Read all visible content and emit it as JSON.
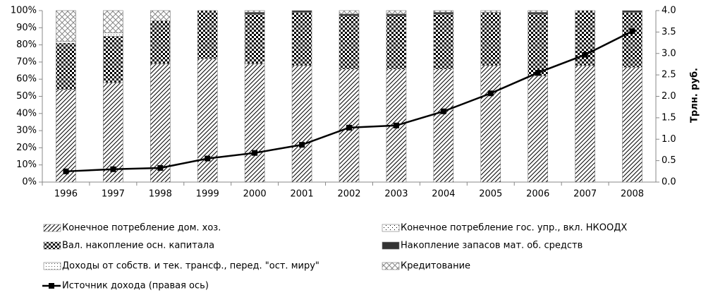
{
  "chart_data": {
    "type": "bar",
    "stacked": true,
    "categories": [
      "1996",
      "1997",
      "1998",
      "1999",
      "2000",
      "2001",
      "2002",
      "2003",
      "2004",
      "2005",
      "2006",
      "2007",
      "2008"
    ],
    "series": [
      {
        "name": "Конечное потребление дом. хоз.",
        "color": "#000000",
        "pattern": "diagonal",
        "values": [
          54,
          58,
          69,
          72,
          69,
          68,
          66,
          66,
          66,
          68,
          62,
          68,
          67
        ]
      },
      {
        "name": "Вал. накопление осн. капитала",
        "color": "#000000",
        "pattern": "checker",
        "values": [
          27,
          27,
          25,
          28,
          29,
          31,
          31,
          31,
          32,
          31,
          36,
          32,
          32
        ]
      },
      {
        "name": "Накопление запасов мат. об. средств",
        "color": "#333333",
        "pattern": "solid",
        "values": [
          0,
          0,
          0,
          0,
          1,
          1,
          1,
          1,
          1,
          0,
          1,
          0,
          1
        ]
      },
      {
        "name": "Конечное потребление гос. упр., вкл. НКООДХ",
        "color": "#000000",
        "pattern": "sparse-dots",
        "values": [
          1,
          0,
          0,
          0,
          0,
          0,
          0,
          0,
          0,
          0,
          0,
          0,
          0
        ]
      },
      {
        "name": "Доходы от собств. и тек. трансф., перед. \"ост. миру\"",
        "color": "#000000",
        "pattern": "dots",
        "values": [
          0,
          2,
          0,
          0,
          0,
          0,
          0,
          0,
          0,
          0,
          0,
          0,
          0
        ]
      },
      {
        "name": "Кредитование",
        "color": "#000000",
        "pattern": "crosshatch",
        "values": [
          18,
          13,
          6,
          0,
          1,
          0,
          2,
          2,
          1,
          1,
          1,
          0,
          0
        ]
      },
      {
        "name": "Источник дохода (правая ось)",
        "color": "#000000",
        "type": "line",
        "axis": "y2",
        "values": [
          0.25,
          0.3,
          0.33,
          0.55,
          0.68,
          0.87,
          1.27,
          1.32,
          1.65,
          2.07,
          2.55,
          2.97,
          3.52
        ]
      }
    ],
    "ylim": [
      0,
      100
    ],
    "yticks": [
      {
        "value": 0,
        "label": "0%"
      },
      {
        "value": 10,
        "label": "10%"
      },
      {
        "value": 20,
        "label": "20%"
      },
      {
        "value": 30,
        "label": "30%"
      },
      {
        "value": 40,
        "label": "40%"
      },
      {
        "value": 50,
        "label": "50%"
      },
      {
        "value": 60,
        "label": "60%"
      },
      {
        "value": 70,
        "label": "70%"
      },
      {
        "value": 80,
        "label": "80%"
      },
      {
        "value": 90,
        "label": "90%"
      },
      {
        "value": 100,
        "label": "100%"
      }
    ],
    "y2lim": [
      0,
      4
    ],
    "y2ticks": [
      {
        "value": 0,
        "label": "0.0"
      },
      {
        "value": 0.5,
        "label": "0.5"
      },
      {
        "value": 1,
        "label": "1.0"
      },
      {
        "value": 1.5,
        "label": "1.5"
      },
      {
        "value": 2,
        "label": "2.0"
      },
      {
        "value": 2.5,
        "label": "2.5"
      },
      {
        "value": 3,
        "label": "3.0"
      },
      {
        "value": 3.5,
        "label": "3.5"
      },
      {
        "value": 4,
        "label": "4.0"
      }
    ],
    "y2label": "Трлн. руб.",
    "legend": "bottom"
  }
}
